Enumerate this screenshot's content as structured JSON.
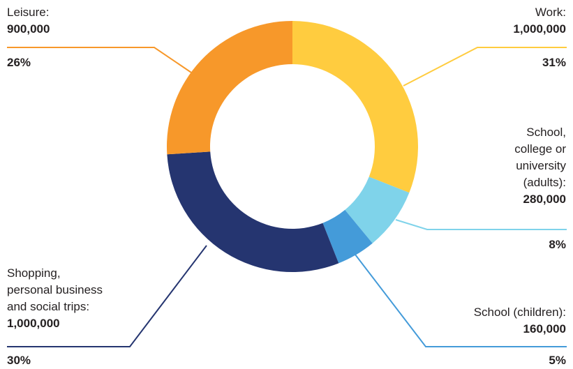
{
  "chart_data": {
    "type": "pie",
    "donut": true,
    "slices": [
      {
        "category_lines": [
          "Work:"
        ],
        "value": "1,000,000",
        "percent": "31%",
        "pct": 31,
        "color": "#ffcc3f"
      },
      {
        "category_lines": [
          "School,",
          "college or",
          "university",
          "(adults):"
        ],
        "value": "280,000",
        "percent": "8%",
        "pct": 8,
        "color": "#7fd3ea"
      },
      {
        "category_lines": [
          "School (children):"
        ],
        "value": "160,000",
        "percent": "5%",
        "pct": 5,
        "color": "#449bd9"
      },
      {
        "category_lines": [
          "Shopping,",
          "personal business",
          "and social trips:"
        ],
        "value": "1,000,000",
        "percent": "30%",
        "pct": 30,
        "color": "#253570"
      },
      {
        "category_lines": [
          "Leisure:"
        ],
        "value": "900,000",
        "percent": "26%",
        "pct": 26,
        "color": "#f7982a"
      }
    ]
  }
}
